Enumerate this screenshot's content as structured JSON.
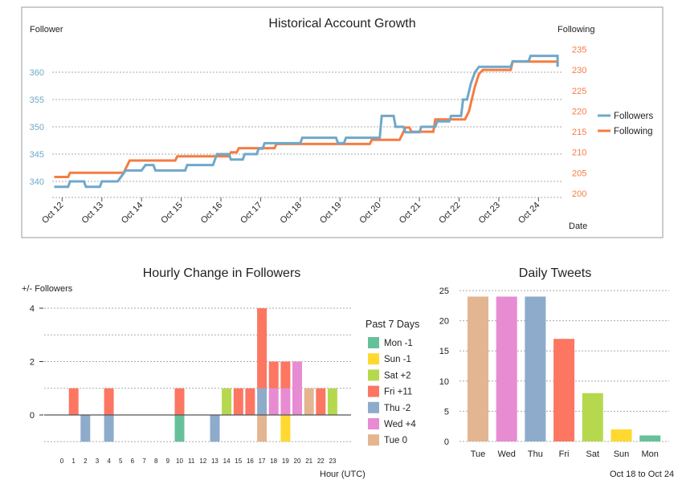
{
  "chart_data": [
    {
      "type": "line",
      "title": "Historical Account Growth",
      "ylabel_left": "Follower",
      "ylabel_right": "Following",
      "xlabel": "Date",
      "x_ticks": [
        "Oct 12",
        "Oct 13",
        "Oct 14",
        "Oct 15",
        "Oct 16",
        "Oct 17",
        "Oct 18",
        "Oct 19",
        "Oct 20",
        "Oct 21",
        "Oct 22",
        "Oct 23",
        "Oct 24"
      ],
      "x_range": [
        11.75,
        24.6
      ],
      "y_left_range": [
        338,
        366
      ],
      "y_left_ticks": [
        340,
        345,
        350,
        355,
        360
      ],
      "y_right_range": [
        198,
        236
      ],
      "y_right_ticks": [
        200,
        205,
        210,
        215,
        220,
        225,
        230,
        235
      ],
      "grid": true,
      "legend": "right",
      "series": [
        {
          "name": "Followers",
          "axis": "left",
          "color": "#6FA8C9",
          "points": [
            [
              11.8,
              339
            ],
            [
              12.15,
              339
            ],
            [
              12.2,
              340
            ],
            [
              12.55,
              340
            ],
            [
              12.6,
              339
            ],
            [
              12.95,
              339
            ],
            [
              13.0,
              340
            ],
            [
              13.4,
              340
            ],
            [
              13.5,
              341
            ],
            [
              13.6,
              342
            ],
            [
              14.0,
              342
            ],
            [
              14.1,
              343
            ],
            [
              14.3,
              343
            ],
            [
              14.35,
              342
            ],
            [
              15.1,
              342
            ],
            [
              15.15,
              343
            ],
            [
              15.8,
              343
            ],
            [
              15.9,
              345
            ],
            [
              16.2,
              345
            ],
            [
              16.25,
              344
            ],
            [
              16.55,
              344
            ],
            [
              16.6,
              345
            ],
            [
              16.9,
              345
            ],
            [
              16.95,
              346
            ],
            [
              17.05,
              346
            ],
            [
              17.1,
              347
            ],
            [
              18.0,
              347
            ],
            [
              18.05,
              348
            ],
            [
              18.9,
              348
            ],
            [
              18.95,
              347
            ],
            [
              19.1,
              347
            ],
            [
              19.15,
              348
            ],
            [
              20.0,
              348
            ],
            [
              20.05,
              352
            ],
            [
              20.35,
              352
            ],
            [
              20.4,
              350
            ],
            [
              20.6,
              350
            ],
            [
              20.65,
              349
            ],
            [
              21.0,
              349
            ],
            [
              21.05,
              350
            ],
            [
              21.4,
              350
            ],
            [
              21.45,
              351
            ],
            [
              21.75,
              351
            ],
            [
              21.8,
              352
            ],
            [
              22.05,
              352
            ],
            [
              22.1,
              355
            ],
            [
              22.2,
              355
            ],
            [
              22.3,
              358
            ],
            [
              22.4,
              360
            ],
            [
              22.5,
              361
            ],
            [
              23.3,
              361
            ],
            [
              23.35,
              362
            ],
            [
              23.75,
              362
            ],
            [
              23.8,
              363
            ],
            [
              24.5,
              363
            ],
            [
              24.55,
              362
            ],
            [
              24.95,
              362
            ],
            [
              25.0,
              361
            ],
            [
              25.2,
              361
            ]
          ]
        },
        {
          "name": "Following",
          "axis": "right",
          "color": "#F57C42",
          "points": [
            [
              11.8,
              204
            ],
            [
              12.15,
              204
            ],
            [
              12.2,
              205
            ],
            [
              13.55,
              205
            ],
            [
              13.6,
              206
            ],
            [
              13.7,
              208
            ],
            [
              14.85,
              208
            ],
            [
              14.9,
              209
            ],
            [
              16.2,
              209
            ],
            [
              16.25,
              210
            ],
            [
              16.4,
              210
            ],
            [
              16.45,
              211
            ],
            [
              17.35,
              211
            ],
            [
              17.4,
              212
            ],
            [
              19.75,
              212
            ],
            [
              19.8,
              213
            ],
            [
              20.5,
              213
            ],
            [
              20.55,
              214
            ],
            [
              20.6,
              215
            ],
            [
              20.65,
              216
            ],
            [
              20.75,
              216
            ],
            [
              20.8,
              215
            ],
            [
              21.35,
              215
            ],
            [
              21.4,
              218
            ],
            [
              22.15,
              218
            ],
            [
              22.25,
              220
            ],
            [
              22.3,
              222
            ],
            [
              22.4,
              226
            ],
            [
              22.5,
              229
            ],
            [
              22.6,
              230
            ],
            [
              23.3,
              230
            ],
            [
              23.35,
              232
            ],
            [
              24.95,
              232
            ],
            [
              25.0,
              231
            ],
            [
              25.2,
              231
            ]
          ]
        }
      ]
    },
    {
      "type": "bar",
      "title": "Hourly Change in Followers",
      "ylabel": "+/- Followers",
      "xlabel": "Hour (UTC)",
      "ylim": [
        -1,
        4
      ],
      "y_ticks": [
        0,
        2,
        4
      ],
      "categories": [
        "0",
        "1",
        "2",
        "3",
        "4",
        "5",
        "6",
        "7",
        "8",
        "9",
        "10",
        "11",
        "12",
        "13",
        "14",
        "15",
        "16",
        "17",
        "18",
        "19",
        "20",
        "21",
        "22",
        "23"
      ],
      "legend_title": "Past 7 Days",
      "legend": "right",
      "series": [
        {
          "name": "Mon -1",
          "color": "#66C19A",
          "values": [
            0,
            0,
            0,
            0,
            0,
            0,
            0,
            0,
            0,
            0,
            -1,
            0,
            0,
            0,
            0,
            0,
            0,
            0,
            0,
            0,
            0,
            0,
            0,
            0
          ]
        },
        {
          "name": "Sun -1",
          "color": "#FFD92F",
          "values": [
            0,
            0,
            0,
            0,
            0,
            0,
            0,
            0,
            0,
            0,
            0,
            0,
            0,
            0,
            0,
            0,
            0,
            0,
            0,
            -1,
            0,
            0,
            0,
            0
          ]
        },
        {
          "name": "Sat +2",
          "color": "#B6D84F",
          "values": [
            0,
            0,
            0,
            0,
            0,
            0,
            0,
            0,
            0,
            0,
            0,
            0,
            0,
            0,
            1,
            0,
            0,
            0,
            0,
            0,
            0,
            0,
            0,
            1
          ]
        },
        {
          "name": "Fri +11",
          "color": "#FC7662",
          "values": [
            0,
            1,
            0,
            0,
            1,
            0,
            0,
            0,
            0,
            0,
            1,
            0,
            0,
            0,
            0,
            1,
            1,
            3,
            1,
            1,
            0,
            0,
            1,
            0
          ]
        },
        {
          "name": "Thu -2",
          "color": "#8EABCB",
          "values": [
            0,
            0,
            -1,
            0,
            -1,
            0,
            0,
            0,
            0,
            0,
            0,
            0,
            0,
            -1,
            0,
            0,
            0,
            1,
            0,
            0,
            0,
            0,
            0,
            0
          ]
        },
        {
          "name": "Wed +4",
          "color": "#E78BD2",
          "values": [
            0,
            0,
            0,
            0,
            0,
            0,
            0,
            0,
            0,
            0,
            0,
            0,
            0,
            0,
            0,
            0,
            0,
            0,
            1,
            1,
            2,
            0,
            0,
            0
          ]
        },
        {
          "name": "Tue 0",
          "color": "#E3B591",
          "values": [
            0,
            0,
            0,
            0,
            0,
            0,
            0,
            0,
            0,
            0,
            0,
            0,
            0,
            0,
            0,
            0,
            0,
            -1,
            0,
            0,
            0,
            1,
            0,
            0
          ]
        }
      ]
    },
    {
      "type": "bar",
      "title": "Daily Tweets",
      "categories": [
        "Tue",
        "Wed",
        "Thu",
        "Fri",
        "Sat",
        "Sun",
        "Mon"
      ],
      "values": [
        24,
        24,
        24,
        17,
        8,
        2,
        1
      ],
      "colors": [
        "#E3B591",
        "#E78BD2",
        "#8EABCB",
        "#FC7662",
        "#B6D84F",
        "#FFD92F",
        "#66C19A"
      ],
      "ylim": [
        0,
        25
      ],
      "y_ticks": [
        0,
        5,
        10,
        15,
        20,
        25
      ],
      "footnote": "Oct 18 to Oct 24"
    }
  ]
}
